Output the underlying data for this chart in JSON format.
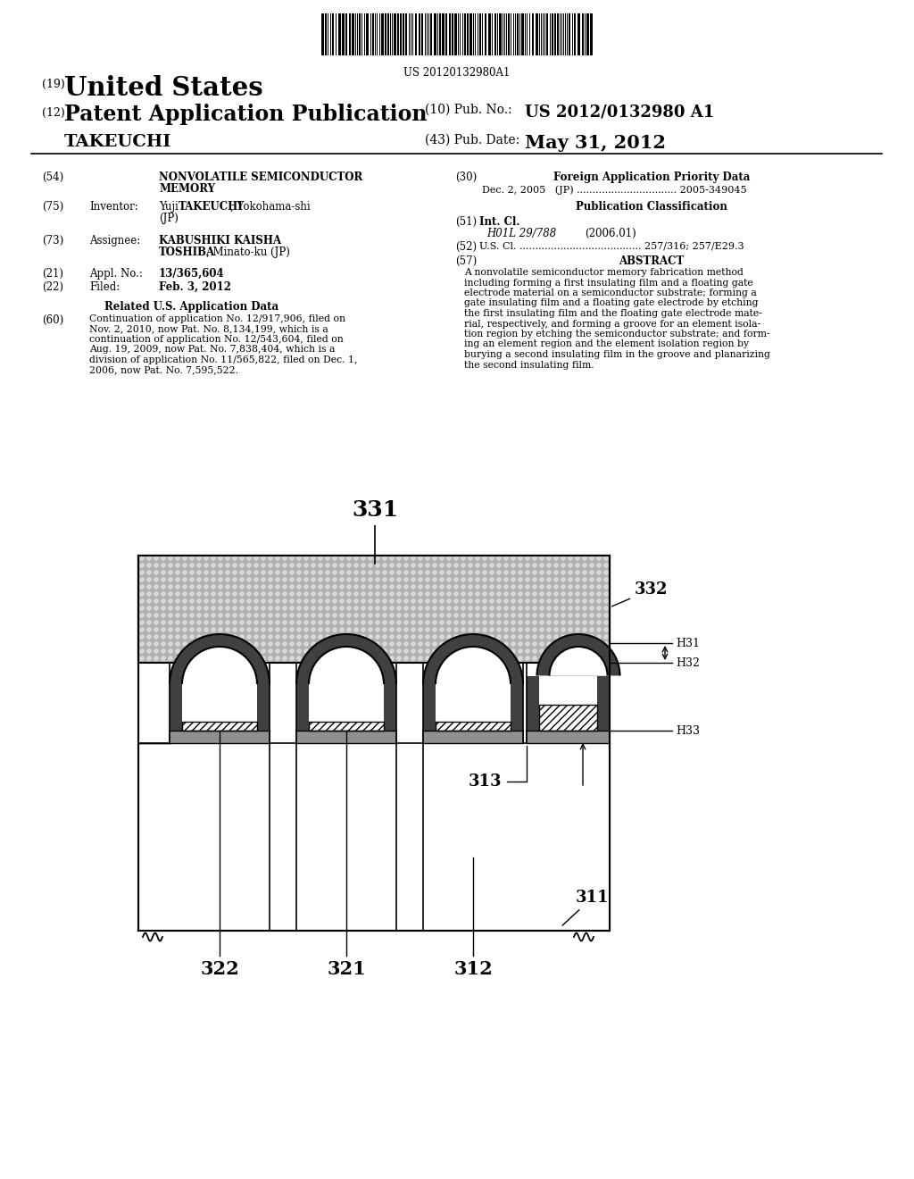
{
  "background_color": "#ffffff",
  "barcode_text": "US 20120132980A1",
  "title_19": "(19)",
  "title_country": "United States",
  "title_12": "(12)",
  "title_type": "Patent Application Publication",
  "title_10": "(10) Pub. No.:",
  "title_pub_no": "US 2012/0132980 A1",
  "title_name": "TAKEUCHI",
  "title_43": "(43) Pub. Date:",
  "title_date": "May 31, 2012",
  "field_54_label": "(54)",
  "field_75_label": "(75)",
  "field_75_key": "Inventor:",
  "field_73_label": "(73)",
  "field_73_key": "Assignee:",
  "field_21_label": "(21)",
  "field_21_key": "Appl. No.:",
  "field_21_val": "13/365,604",
  "field_22_label": "(22)",
  "field_22_key": "Filed:",
  "field_22_val": "Feb. 3, 2012",
  "related_title": "Related U.S. Application Data",
  "related_60_label": "(60)",
  "related_60_text": "Continuation of application No. 12/917,906, filed on\nNov. 2, 2010, now Pat. No. 8,134,199, which is a\ncontinuation of application No. 12/543,604, filed on\nAug. 19, 2009, now Pat. No. 7,838,404, which is a\ndivision of application No. 11/565,822, filed on Dec. 1,\n2006, now Pat. No. 7,595,522.",
  "right_30_label": "(30)",
  "right_30_title": "Foreign Application Priority Data",
  "right_30_text": "Dec. 2, 2005   (JP) ................................ 2005-349045",
  "pub_class_title": "Publication Classification",
  "field_51_label": "(51)",
  "field_51_key": "Int. Cl.",
  "field_51_val": "H01L 29/788",
  "field_51_year": "(2006.01)",
  "field_52_label": "(52)",
  "field_52_key": "U.S. Cl. ....................................... 257/316; 257/E29.3",
  "field_57_label": "(57)",
  "field_57_title": "ABSTRACT",
  "field_57_text": "A nonvolatile semiconductor memory fabrication method\nincluding forming a first insulating film and a floating gate\nelectrode material on a semiconductor substrate; forming a\ngate insulating film and a floating gate electrode by etching\nthe first insulating film and the floating gate electrode mate-\nrial, respectively, and forming a groove for an element isola-\ntion region by etching the semiconductor substrate; and form-\ning an element region and the element isolation region by\nburying a second insulating film in the groove and planarizing\nthe second insulating film.",
  "diagram_label_331": "331",
  "diagram_label_332": "332",
  "diagram_label_H31": "H31",
  "diagram_label_H32": "H32",
  "diagram_label_H33": "H33",
  "diagram_label_313": "313",
  "diagram_label_311": "311",
  "diagram_label_322": "322",
  "diagram_label_321": "321",
  "diagram_label_312": "312"
}
